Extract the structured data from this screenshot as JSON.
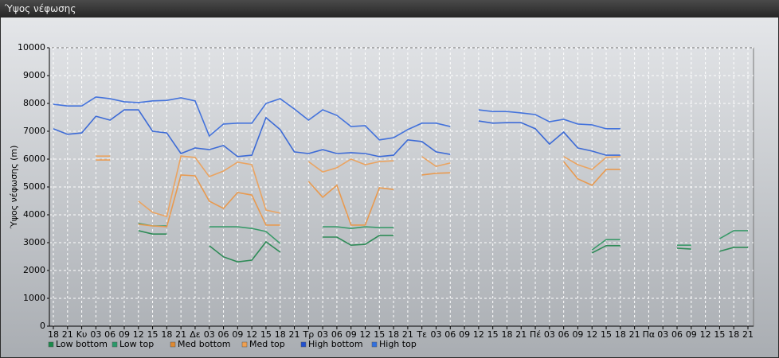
{
  "window_title": "Ύψος νέφωσης",
  "chart_data": {
    "type": "line",
    "ylabel": "Ύψος νέφωσης (m)",
    "categories": [
      "18",
      "21",
      "Κυ",
      "03",
      "06",
      "09",
      "12",
      "15",
      "18",
      "21",
      "Δε",
      "03",
      "06",
      "09",
      "12",
      "15",
      "18",
      "21",
      "Τρ",
      "03",
      "06",
      "09",
      "12",
      "15",
      "18",
      "21",
      "Τε",
      "03",
      "06",
      "09",
      "12",
      "15",
      "18",
      "21",
      "Πέ",
      "03",
      "06",
      "09",
      "12",
      "15",
      "18",
      "21",
      "Πα",
      "03",
      "06",
      "09",
      "12",
      "15",
      "18",
      "21"
    ],
    "ylim": [
      0,
      10000
    ],
    "yticks": [
      0,
      1000,
      2000,
      3000,
      4000,
      5000,
      6000,
      7000,
      8000,
      9000,
      10000
    ],
    "grid": true,
    "series": [
      {
        "name": "Low bottom",
        "color": "#2e8b57",
        "legend_color": "#1a8a4a",
        "values": [
          null,
          null,
          null,
          null,
          null,
          null,
          3430,
          3310,
          3310,
          null,
          null,
          2890,
          2490,
          2310,
          2370,
          3030,
          2660,
          null,
          null,
          3200,
          3200,
          2910,
          2940,
          3260,
          3260,
          null,
          null,
          null,
          null,
          null,
          null,
          null,
          null,
          null,
          null,
          null,
          null,
          null,
          2630,
          2890,
          2890,
          null,
          null,
          null,
          2800,
          2770,
          null,
          2690,
          2830,
          2830
        ]
      },
      {
        "name": "Low top",
        "color": "#3a9a6a",
        "legend_color": "#2a9a6a",
        "values": [
          null,
          null,
          null,
          null,
          null,
          null,
          3690,
          3600,
          3600,
          null,
          null,
          3570,
          3570,
          3570,
          3510,
          3400,
          2970,
          null,
          null,
          3570,
          3570,
          3510,
          3570,
          3540,
          3540,
          null,
          null,
          null,
          null,
          null,
          null,
          null,
          null,
          null,
          null,
          null,
          null,
          null,
          2740,
          3110,
          3110,
          null,
          null,
          null,
          2910,
          2910,
          null,
          3140,
          3430,
          3430
        ]
      },
      {
        "name": "Med bottom",
        "color": "#e89a50",
        "legend_color": "#e08a30",
        "values": [
          null,
          null,
          null,
          5970,
          5970,
          null,
          3660,
          3600,
          3570,
          5430,
          5400,
          4490,
          4230,
          4800,
          4710,
          3630,
          3630,
          null,
          5200,
          4630,
          5060,
          3630,
          3630,
          4970,
          4910,
          null,
          5430,
          5490,
          5510,
          null,
          null,
          null,
          null,
          null,
          null,
          null,
          5910,
          5290,
          5060,
          5630,
          5630,
          null,
          null,
          null,
          null,
          null,
          null,
          null,
          null,
          null
        ]
      },
      {
        "name": "Med top",
        "color": "#eaa462",
        "legend_color": "#f0a050",
        "values": [
          null,
          null,
          null,
          6110,
          6110,
          null,
          4490,
          4090,
          3940,
          6110,
          6060,
          5370,
          5570,
          5890,
          5800,
          4170,
          4060,
          null,
          5910,
          5540,
          5690,
          6000,
          5800,
          5910,
          5940,
          null,
          6090,
          5740,
          5860,
          null,
          null,
          null,
          null,
          null,
          null,
          null,
          6090,
          5800,
          5630,
          6060,
          6090,
          null,
          null,
          null,
          null,
          null,
          null,
          null,
          null,
          null
        ]
      },
      {
        "name": "High bottom",
        "color": "#3d6bd6",
        "legend_color": "#2050d0",
        "values": [
          7090,
          6890,
          6940,
          7540,
          7400,
          7770,
          7770,
          7000,
          6940,
          6200,
          6400,
          6340,
          6490,
          6090,
          6140,
          7490,
          7060,
          6260,
          6200,
          6340,
          6200,
          6230,
          6200,
          6090,
          6140,
          6690,
          6630,
          6260,
          6170,
          null,
          7370,
          7290,
          7310,
          7310,
          7090,
          6540,
          6970,
          6400,
          6290,
          6140,
          6140,
          null,
          null,
          null,
          null,
          null,
          null,
          null,
          null,
          null
        ]
      },
      {
        "name": "High top",
        "color": "#4473dc",
        "legend_color": "#3070e0",
        "values": [
          7970,
          7910,
          7910,
          8230,
          8170,
          8060,
          8030,
          8090,
          8110,
          8200,
          8090,
          6830,
          7260,
          7290,
          7290,
          8000,
          8170,
          7800,
          7400,
          7770,
          7570,
          7170,
          7200,
          6690,
          6770,
          7060,
          7290,
          7290,
          7170,
          null,
          7770,
          7710,
          7710,
          7660,
          7600,
          7340,
          7430,
          7260,
          7230,
          7090,
          7090,
          null,
          null,
          null,
          null,
          null,
          null,
          null,
          null,
          null
        ]
      }
    ]
  }
}
